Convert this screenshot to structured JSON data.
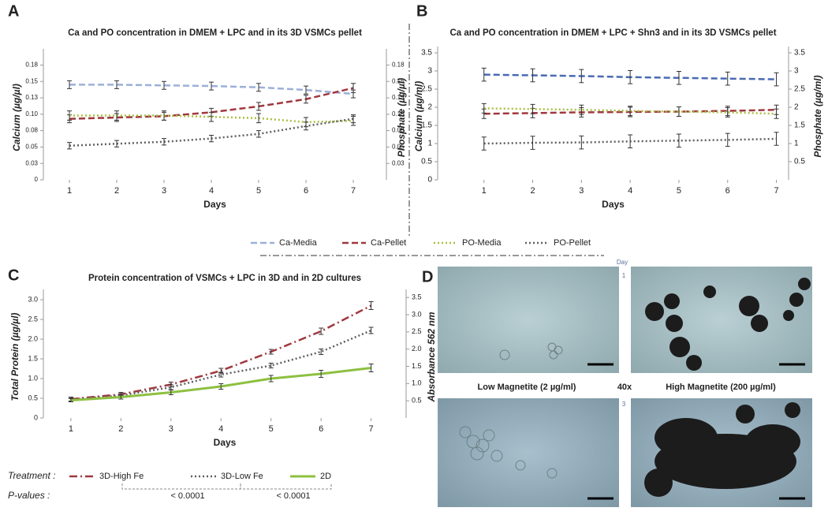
{
  "panels": [
    "A",
    "B",
    "C",
    "D"
  ],
  "chart_data": [
    {
      "type": "line",
      "title": "Ca and PO concentration in DMEM + LPC and in its 3D VSMCs pellet",
      "x_label": "Days",
      "y_label": "Calcium (µg/µl)",
      "y2_label": "Phosphate (µg/µl)",
      "x": [
        1,
        2,
        3,
        4,
        5,
        6,
        7
      ],
      "xlim": [
        0.45,
        7.7
      ],
      "xticks": [
        1,
        2,
        3,
        4,
        5,
        6,
        7
      ],
      "ylim": [
        0,
        0.19
      ],
      "yticks": [
        0,
        {
          "value": 0.025,
          "label": "0.03"
        },
        0.05,
        {
          "value": 0.075,
          "label": "0.08"
        },
        {
          "value": 0.1,
          "label": "0.10"
        },
        {
          "value": 0.125,
          "label": "0.13"
        },
        0.15,
        {
          "value": 0.175,
          "label": "0.18"
        }
      ],
      "y2lim": [
        0,
        0.19
      ],
      "y2ticks": [
        {
          "value": 0.025,
          "label": "0.03"
        },
        0.05,
        {
          "value": 0.075,
          "label": "0.08"
        },
        {
          "value": 0.1,
          "label": "0.10"
        },
        {
          "value": 0.125,
          "label": "0.13"
        },
        0.15,
        {
          "value": 0.175,
          "label": "0.18"
        }
      ],
      "series": [
        {
          "name": "Ca-Media",
          "color": "#9bb0d8",
          "dash": "dashed",
          "values": [
            0.145,
            0.145,
            0.144,
            0.143,
            0.141,
            0.137,
            0.131
          ],
          "errors": [
            0.006,
            0.006,
            0.006,
            0.006,
            0.006,
            0.006,
            0.006
          ]
        },
        {
          "name": "Ca-Pellet",
          "color": "#a0383e",
          "dash": "dashed",
          "values": [
            0.093,
            0.095,
            0.097,
            0.103,
            0.112,
            0.123,
            0.14
          ],
          "errors": [
            0.006,
            0.006,
            0.006,
            0.006,
            0.006,
            0.006,
            0.007
          ]
        },
        {
          "name": "PO-Media",
          "color": "#a8c040",
          "dash": "dotted",
          "axis": "y2",
          "values": [
            0.098,
            0.098,
            0.098,
            0.096,
            0.094,
            0.088,
            0.09
          ],
          "errors": [
            0.007,
            0.007,
            0.007,
            0.007,
            0.007,
            0.007,
            0.007
          ]
        },
        {
          "name": "PO-Pellet",
          "color": "#606060",
          "dash": "dotted",
          "axis": "y2",
          "values": [
            0.052,
            0.055,
            0.058,
            0.063,
            0.07,
            0.082,
            0.093
          ],
          "errors": [
            0.005,
            0.005,
            0.005,
            0.005,
            0.005,
            0.006,
            0.006
          ]
        }
      ]
    },
    {
      "type": "line",
      "title": "Ca and PO concentration in DMEM + LPC + Shn3 and in its 3D VSMCs pellet",
      "x_label": "Days",
      "y_label": "Calcium (µg/ml)",
      "y2_label": "Phosphate (µg/ml)",
      "x": [
        1,
        2,
        3,
        4,
        5,
        6,
        7
      ],
      "xlim": [
        0.05,
        7.25
      ],
      "xticks": [
        1,
        2,
        3,
        4,
        5,
        6,
        7
      ],
      "ylim": [
        0,
        3.5
      ],
      "yticks": [
        0,
        0.5,
        1,
        1.5,
        2,
        2.5,
        3,
        3.5
      ],
      "y2lim": [
        0,
        3.5
      ],
      "y2ticks": [
        0.5,
        1,
        1.5,
        2,
        2.5,
        3,
        3.5
      ],
      "series": [
        {
          "color": "#4a6ab3",
          "dash": "dashed",
          "values": [
            2.9,
            2.88,
            2.86,
            2.83,
            2.81,
            2.79,
            2.77
          ],
          "errors": [
            0.18,
            0.18,
            0.18,
            0.18,
            0.18,
            0.18,
            0.18
          ]
        },
        {
          "color": "#a0383e",
          "dash": "dashed",
          "values": [
            1.82,
            1.84,
            1.86,
            1.87,
            1.88,
            1.9,
            1.93
          ],
          "errors": [
            0.13,
            0.13,
            0.13,
            0.13,
            0.13,
            0.13,
            0.13
          ]
        },
        {
          "color": "#a8c040",
          "dash": "dotted",
          "axis": "y2",
          "values": [
            1.97,
            1.95,
            1.93,
            1.9,
            1.88,
            1.86,
            1.82
          ],
          "errors": [
            0.13,
            0.13,
            0.13,
            0.13,
            0.13,
            0.13,
            0.13
          ]
        },
        {
          "color": "#606060",
          "dash": "dotted",
          "axis": "y2",
          "values": [
            1.0,
            1.02,
            1.03,
            1.06,
            1.08,
            1.1,
            1.13
          ],
          "errors": [
            0.18,
            0.18,
            0.18,
            0.18,
            0.18,
            0.18,
            0.18
          ]
        }
      ]
    },
    {
      "type": "line",
      "title": "Protein concentration of VSMCs + LPC in 3D and in 2D cultures",
      "x_label": "Days",
      "y_label": "Total Protein (µg/µl)",
      "y2_label": "Absorbance 562 nm",
      "x": [
        1,
        2,
        3,
        4,
        5,
        6,
        7
      ],
      "xlim": [
        0.45,
        7.7
      ],
      "xticks": [
        1,
        2,
        3,
        4,
        5,
        6,
        7
      ],
      "ylim": [
        0,
        3.1
      ],
      "yticks": [
        0,
        0.5,
        {
          "value": 1,
          "label": "1.0"
        },
        1.5,
        {
          "value": 2,
          "label": "2.0"
        },
        2.5,
        {
          "value": 3,
          "label": "3.0"
        }
      ],
      "y2lim": [
        0,
        3.55
      ],
      "y2ticks": [
        0.5,
        {
          "value": 1,
          "label": "1.0"
        },
        1.5,
        {
          "value": 2,
          "label": "2.0"
        },
        2.5,
        {
          "value": 3,
          "label": "3.0"
        },
        3.5
      ],
      "legend_title": "Treatment :",
      "pvalues_label": "P-values :",
      "pvalues": [
        "< 0.0001",
        "< 0.0001"
      ],
      "series": [
        {
          "name": "3D-High Fe",
          "color": "#a0383e",
          "dash": "dashdot",
          "values": [
            0.48,
            0.6,
            0.85,
            1.2,
            1.68,
            2.2,
            2.85
          ],
          "errors": [
            0.05,
            0.05,
            0.06,
            0.06,
            0.06,
            0.08,
            0.1
          ]
        },
        {
          "name": "3D-Low Fe",
          "color": "#606060",
          "dash": "dotted",
          "values": [
            0.47,
            0.57,
            0.78,
            1.1,
            1.33,
            1.68,
            2.22
          ],
          "errors": [
            0.05,
            0.05,
            0.06,
            0.06,
            0.06,
            0.07,
            0.08
          ]
        },
        {
          "name": "2D",
          "color": "#8dc040",
          "dash": "solid",
          "values": [
            0.45,
            0.53,
            0.65,
            0.8,
            1.0,
            1.12,
            1.27
          ],
          "errors": [
            0.04,
            0.05,
            0.06,
            0.07,
            0.08,
            0.09,
            0.1
          ]
        }
      ]
    }
  ],
  "image_panel": {
    "day_label": "Day",
    "rows": [
      "1",
      "3"
    ],
    "left_label": "Low Magnetite (2 µg/ml)",
    "magnification": "40x",
    "right_label": "High Magnetite (200 µg/ml)"
  }
}
